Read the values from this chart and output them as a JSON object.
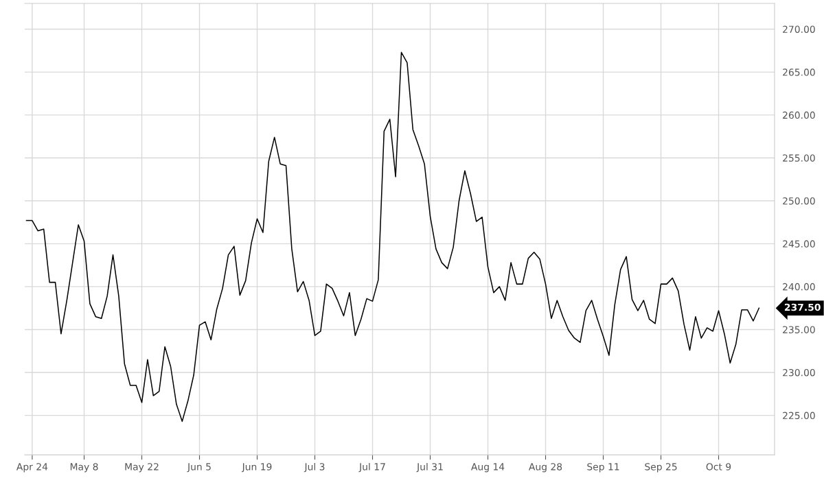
{
  "chart_data": {
    "type": "line",
    "categories": [
      null,
      "Apr 24",
      null,
      null,
      null,
      null,
      null,
      null,
      null,
      null,
      "May 8",
      null,
      null,
      null,
      null,
      null,
      null,
      null,
      null,
      null,
      "May 22",
      null,
      null,
      null,
      null,
      null,
      null,
      null,
      null,
      null,
      "Jun 5",
      null,
      null,
      null,
      null,
      null,
      null,
      null,
      null,
      null,
      "Jun 19",
      null,
      null,
      null,
      null,
      null,
      null,
      null,
      null,
      null,
      "Jul 3",
      null,
      null,
      null,
      null,
      null,
      null,
      null,
      null,
      null,
      "Jul 17",
      null,
      null,
      null,
      null,
      null,
      null,
      null,
      null,
      null,
      "Jul 31",
      null,
      null,
      null,
      null,
      null,
      null,
      null,
      null,
      null,
      "Aug 14",
      null,
      null,
      null,
      null,
      null,
      null,
      null,
      null,
      null,
      "Aug 28",
      null,
      null,
      null,
      null,
      null,
      null,
      null,
      null,
      null,
      "Sep 11",
      null,
      null,
      null,
      null,
      null,
      null,
      null,
      null,
      null,
      "Sep 25",
      null,
      null,
      null,
      null,
      null,
      null,
      null,
      null,
      null,
      "Oct 9",
      null,
      null,
      null,
      null,
      null,
      null,
      null
    ],
    "series": [
      {
        "color": "#000000",
        "values": [
          247.7,
          247.7,
          246.5,
          246.7,
          240.5,
          240.5,
          234.5,
          238.4,
          242.8,
          247.2,
          245.3,
          238.0,
          236.5,
          236.3,
          238.9,
          243.7,
          238.9,
          231.0,
          228.5,
          228.5,
          226.5,
          231.5,
          227.3,
          227.8,
          233.0,
          230.7,
          226.3,
          224.3,
          226.7,
          229.7,
          235.5,
          235.9,
          233.8,
          237.4,
          239.8,
          243.7,
          244.7,
          239.0,
          240.7,
          245.1,
          247.9,
          246.3,
          254.6,
          257.4,
          254.3,
          254.1,
          244.4,
          239.4,
          240.6,
          238.4,
          234.3,
          234.8,
          240.3,
          239.8,
          238.3,
          236.6,
          239.3,
          234.3,
          236.2,
          238.6,
          238.3,
          240.8,
          258.1,
          259.5,
          252.8,
          267.3,
          266.1,
          258.3,
          256.4,
          254.3,
          248.2,
          244.4,
          242.8,
          242.1,
          244.6,
          250.0,
          253.5,
          250.8,
          247.6,
          248.1,
          242.3,
          239.3,
          240.0,
          238.4,
          242.8,
          240.3,
          240.3,
          243.3,
          244.0,
          243.2,
          240.3,
          236.3,
          238.4,
          236.5,
          234.9,
          234.0,
          233.5,
          237.2,
          238.4,
          236.2,
          234.2,
          232.0,
          237.9,
          242.0,
          243.5,
          238.5,
          237.2,
          238.4,
          236.2,
          235.7,
          240.3,
          240.3,
          241.0,
          239.5,
          235.6,
          232.6,
          236.5,
          234.0,
          235.2,
          234.8,
          237.2,
          234.5,
          231.1,
          233.3,
          237.3,
          237.3,
          236.0,
          237.5
        ]
      }
    ],
    "ylim": [
      220.4,
      273
    ],
    "yticks": [
      {
        "value": 225,
        "label": "225.00"
      },
      {
        "value": 230,
        "label": "230.00"
      },
      {
        "value": 235,
        "label": "235.00"
      },
      {
        "value": 240,
        "label": "240.00"
      },
      {
        "value": 245,
        "label": "245.00"
      },
      {
        "value": 250,
        "label": "250.00"
      },
      {
        "value": 255,
        "label": "255.00"
      },
      {
        "value": 260,
        "label": "260.00"
      },
      {
        "value": 265,
        "label": "265.00"
      },
      {
        "value": 270,
        "label": "270.00"
      }
    ],
    "grid": true,
    "marker": "none",
    "line_style": "solid",
    "annotations": [
      "237.50"
    ]
  }
}
